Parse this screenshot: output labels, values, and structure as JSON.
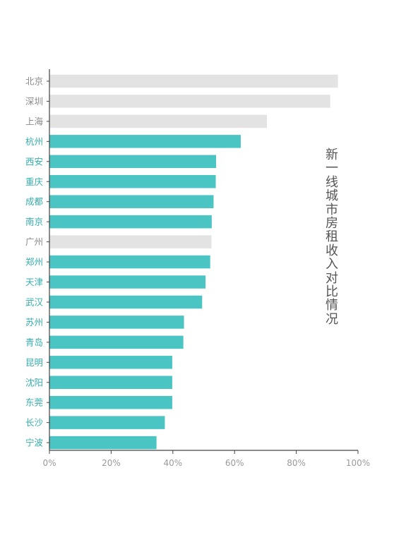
{
  "chart_data": {
    "type": "bar",
    "orientation": "horizontal",
    "title": "新一线城市房租收入对比情况",
    "title_orientation": "vertical",
    "categories": [
      "北京",
      "深圳",
      "上海",
      "杭州",
      "西安",
      "重庆",
      "成都",
      "南京",
      "广州",
      "郑州",
      "天津",
      "武汉",
      "苏州",
      "青岛",
      "昆明",
      "沈阳",
      "东莞",
      "长沙",
      "宁波"
    ],
    "values": [
      0.935,
      0.91,
      0.705,
      0.62,
      0.54,
      0.539,
      0.532,
      0.526,
      0.525,
      0.521,
      0.506,
      0.495,
      0.436,
      0.434,
      0.398,
      0.398,
      0.398,
      0.374,
      0.347
    ],
    "category_group": [
      "first-tier",
      "first-tier",
      "first-tier",
      "new-first-tier",
      "new-first-tier",
      "new-first-tier",
      "new-first-tier",
      "new-first-tier",
      "first-tier",
      "new-first-tier",
      "new-first-tier",
      "new-first-tier",
      "new-first-tier",
      "new-first-tier",
      "new-first-tier",
      "new-first-tier",
      "new-first-tier",
      "new-first-tier",
      "new-first-tier"
    ],
    "x_ticks": [
      "0%",
      "20%",
      "40%",
      "60%",
      "80%",
      "100%"
    ],
    "xlim": [
      0,
      1
    ],
    "xlabel": "",
    "ylabel": "",
    "grid": false,
    "legend": "none",
    "colors": {
      "first-tier": "#e3e3e3",
      "new-first-tier": "#4bc4c4",
      "first-tier_label": "#8a8a8a",
      "new-first-tier_label": "#35adad",
      "axis": "#444444",
      "tick_label": "#9a9a9a",
      "title": "#555555"
    }
  }
}
